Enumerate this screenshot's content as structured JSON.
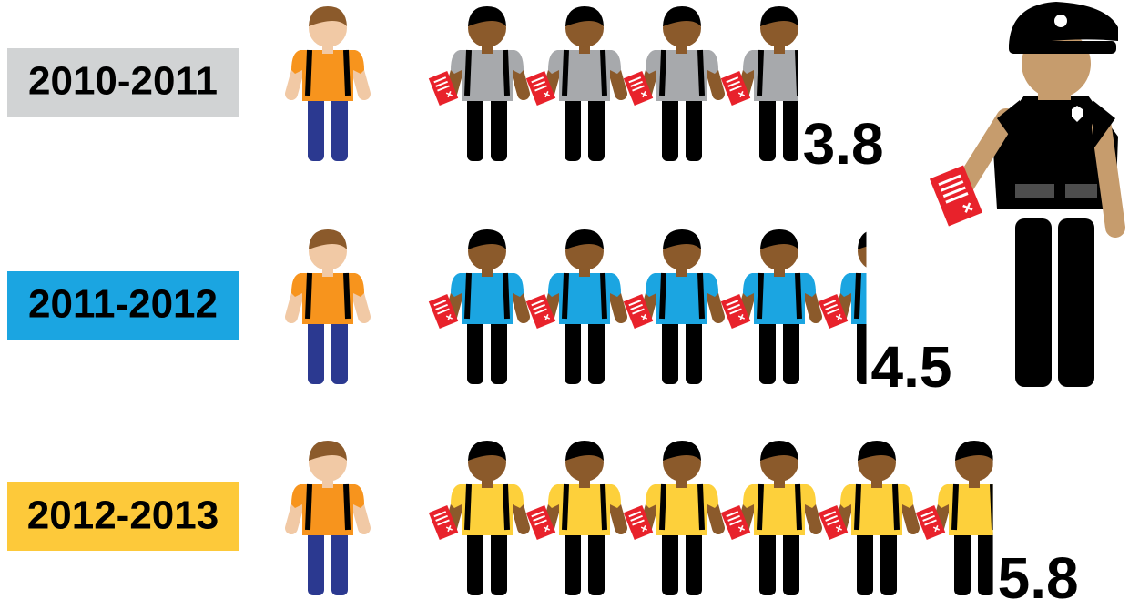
{
  "chart_data": {
    "type": "pictogram",
    "categories": [
      "2010-2011",
      "2011-2012",
      "2012-2013"
    ],
    "values": [
      3.8,
      4.5,
      5.8
    ],
    "colors": [
      "#a7a9ac",
      "#1ba5e1",
      "#fdd03b"
    ],
    "label_colors": [
      "#d1d3d4",
      "#1ba5e1",
      "#fdc93a"
    ]
  }
}
